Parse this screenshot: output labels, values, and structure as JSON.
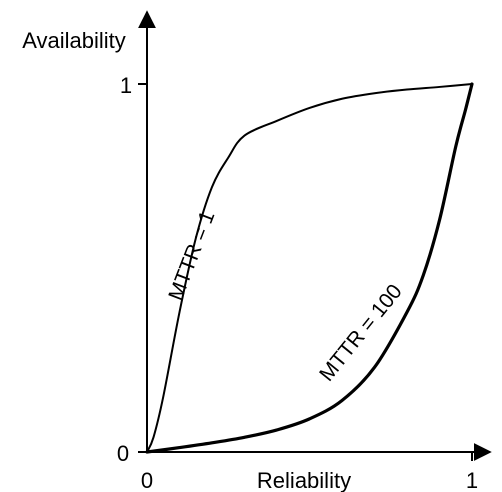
{
  "chart_data": {
    "type": "line",
    "xlabel": "Reliability",
    "ylabel": "Availability",
    "xlim": [
      0,
      1
    ],
    "ylim": [
      0,
      1
    ],
    "x_ticks": [
      "0",
      "1"
    ],
    "y_ticks": [
      "0",
      "1"
    ],
    "grid": false,
    "legend": "none",
    "series": [
      {
        "name": "MTTR = 1",
        "color": "#000000",
        "points": [
          [
            0,
            0
          ],
          [
            0.02,
            0.04
          ],
          [
            0.05,
            0.15
          ],
          [
            0.1,
            0.38
          ],
          [
            0.15,
            0.58
          ],
          [
            0.2,
            0.72
          ],
          [
            0.25,
            0.8
          ],
          [
            0.3,
            0.86
          ],
          [
            0.4,
            0.9
          ],
          [
            0.5,
            0.935
          ],
          [
            0.6,
            0.96
          ],
          [
            0.7,
            0.975
          ],
          [
            0.8,
            0.985
          ],
          [
            0.9,
            0.992
          ],
          [
            1,
            1
          ]
        ]
      },
      {
        "name": "MTTR = 100",
        "color": "#000000",
        "points": [
          [
            0,
            0
          ],
          [
            0.1,
            0.012
          ],
          [
            0.2,
            0.025
          ],
          [
            0.3,
            0.04
          ],
          [
            0.4,
            0.06
          ],
          [
            0.5,
            0.09
          ],
          [
            0.6,
            0.14
          ],
          [
            0.7,
            0.23
          ],
          [
            0.8,
            0.38
          ],
          [
            0.85,
            0.48
          ],
          [
            0.9,
            0.63
          ],
          [
            0.95,
            0.83
          ],
          [
            0.98,
            0.93
          ],
          [
            1,
            1
          ]
        ]
      }
    ]
  }
}
